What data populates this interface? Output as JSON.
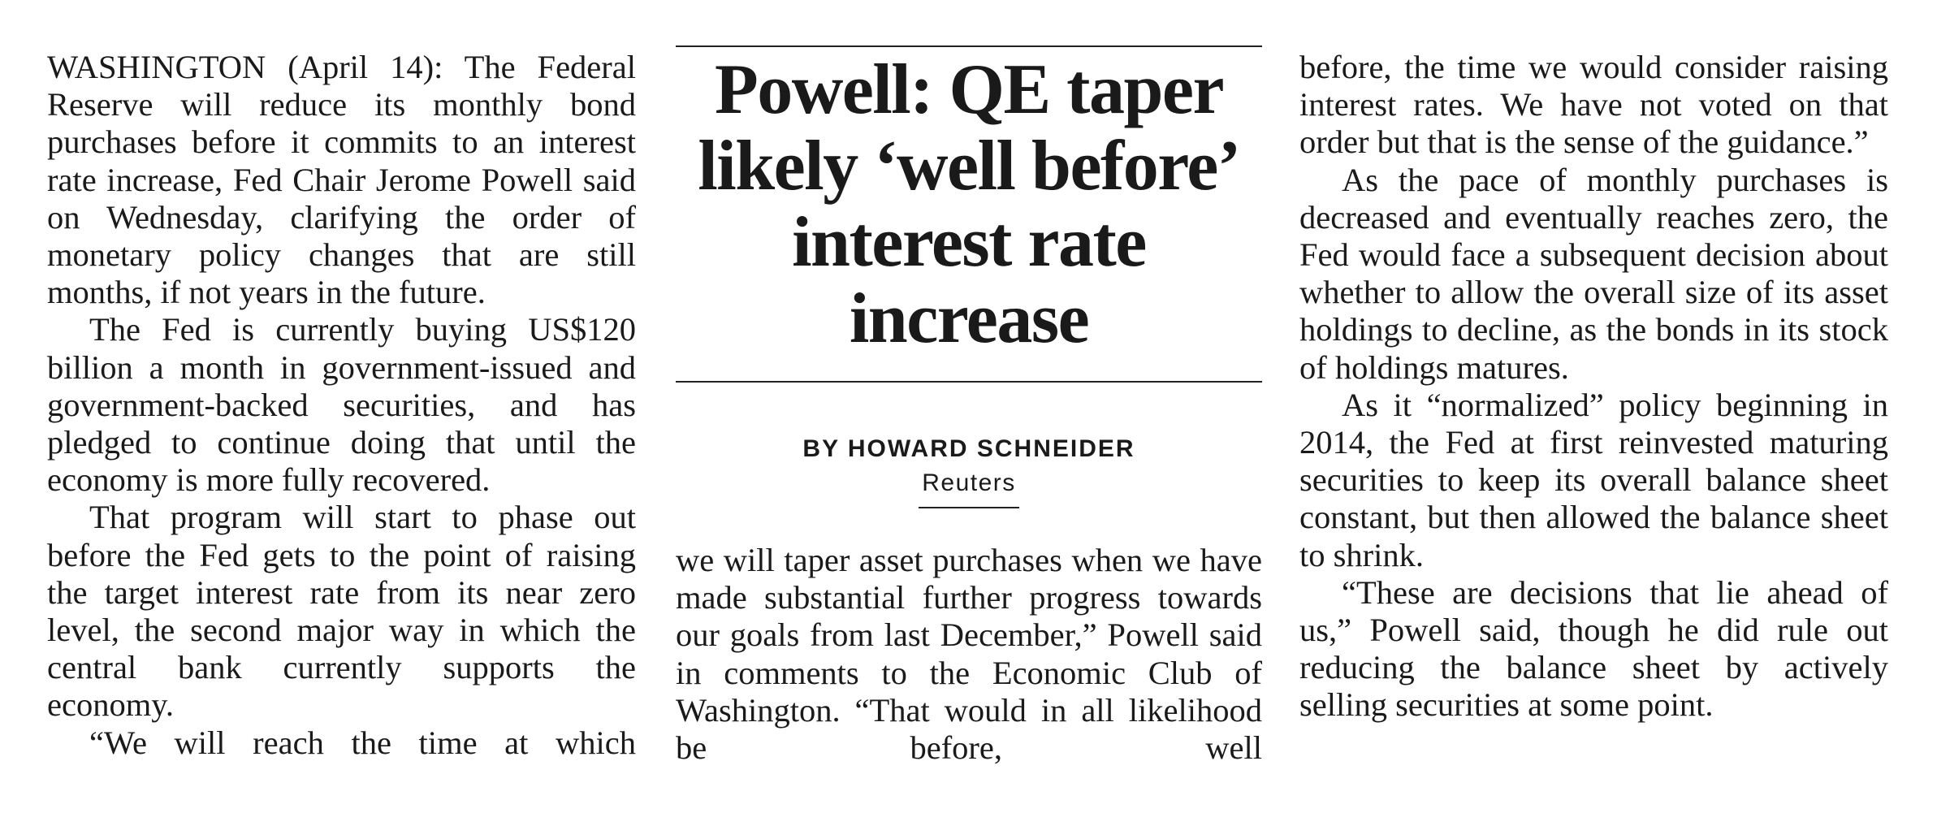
{
  "article": {
    "headline": "Powell: QE taper likely ‘well before’ interest rate increase",
    "byline": "BY HOWARD SCHNEIDER",
    "source": "Reuters",
    "left_column": [
      "WASHINGTON (April 14): The Federal Reserve will reduce its monthly bond purchases before it commits to an interest rate increase, Fed Chair Jerome Powell said on Wednesday, clarifying the order of monetary policy changes that are still months, if not years in the future.",
      "The Fed is currently buying US$120 billion a month in government-issued and government-backed securities, and has pledged to continue doing that until the economy is more fully recovered.",
      "That program will start to phase out before the Fed gets to the point of raising the target interest rate from its near zero level, the second major way in which the central bank currently supports the economy.",
      "“We will reach the time at which"
    ],
    "middle_column": [
      "we will taper asset purchases when we have made substantial further progress towards our goals from last December,” Powell said in comments to the Economic Club of Washington. “That would in all likelihood be before, well"
    ],
    "right_column": [
      "before, the time we would consider raising interest rates. We have not voted on that order but that is the sense of the guidance.”",
      "As the pace of monthly purchases is decreased and eventually reaches zero, the Fed would face a subsequent decision about whether to allow the overall size of its asset holdings to decline, as the bonds in its stock of holdings matures.",
      "As it “normalized” policy beginning in 2014, the Fed at first reinvested maturing securities to keep its overall balance sheet constant, but then allowed the balance sheet to shrink.",
      "“These are decisions that lie ahead of us,” Powell said, though he did rule out reducing the balance sheet by actively selling securities at some point."
    ]
  }
}
